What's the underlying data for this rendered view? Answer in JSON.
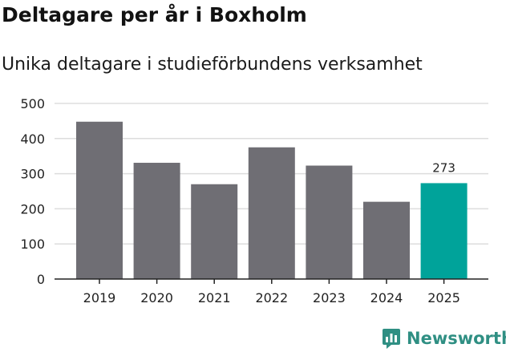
{
  "header": {
    "title": "Deltagare per år i Boxholm",
    "subtitle": "Unika deltagare i studieförbundens verksamhet"
  },
  "brand": {
    "name": "Newsworthy",
    "color": "#2f8f83"
  },
  "colors": {
    "bar": "#6f6e74",
    "highlight": "#00a39a",
    "grid": "#dddddd",
    "axis": "#222222"
  },
  "chart_data": {
    "type": "bar",
    "title": "Deltagare per år i Boxholm",
    "subtitle": "Unika deltagare i studieförbundens verksamhet",
    "xlabel": "",
    "ylabel": "",
    "categories": [
      "2019",
      "2020",
      "2021",
      "2022",
      "2023",
      "2024",
      "2025"
    ],
    "values": [
      448,
      331,
      270,
      375,
      323,
      220,
      273
    ],
    "highlight_index": 6,
    "data_labels": [
      {
        "category": "2025",
        "text": "273"
      }
    ],
    "ylim": [
      0,
      500
    ],
    "yticks": [
      0,
      100,
      200,
      300,
      400,
      500
    ],
    "grid": true
  }
}
